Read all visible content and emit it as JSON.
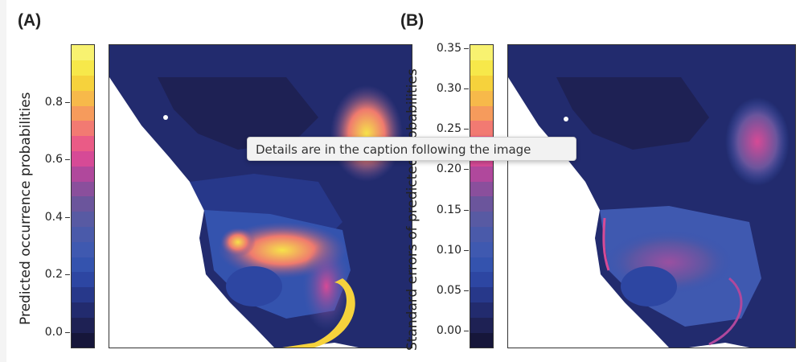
{
  "tooltip": "Details are in the caption following the image",
  "chart_data": [
    {
      "panel": "(A)",
      "type": "heatmap",
      "ylabel": "Predicted occurrence probabilities",
      "ticks": [
        "0.0",
        "0.2",
        "0.4",
        "0.6",
        "0.8"
      ],
      "tick_values": [
        0.0,
        0.2,
        0.4,
        0.6,
        0.8
      ],
      "range": [
        -0.05,
        1.0
      ],
      "colors": [
        "#16163a",
        "#1e2154",
        "#222b6e",
        "#27388a",
        "#2d46a2",
        "#3453ae",
        "#3f59b0",
        "#4a5aaa",
        "#585aa3",
        "#6b559c",
        "#8a4f9c",
        "#b0489c",
        "#d64a96",
        "#ea5b86",
        "#f27a72",
        "#f69b5c",
        "#f7b94a",
        "#f6d23c",
        "#f7e84a",
        "#f8f270"
      ]
    },
    {
      "panel": "(B)",
      "type": "heatmap",
      "ylabel": "Standard errors of predicted probabilities",
      "ticks": [
        "0.00",
        "0.05",
        "0.10",
        "0.15",
        "0.20",
        "0.25",
        "0.30",
        "0.35"
      ],
      "tick_values": [
        0.0,
        0.05,
        0.1,
        0.15,
        0.2,
        0.25,
        0.3,
        0.35
      ],
      "range": [
        -0.02,
        0.355
      ],
      "colors": [
        "#16163a",
        "#1e2154",
        "#222b6e",
        "#27388a",
        "#2d46a2",
        "#3453ae",
        "#3f59b0",
        "#4a5aaa",
        "#585aa3",
        "#6b559c",
        "#8a4f9c",
        "#b0489c",
        "#d64a96",
        "#ea5b86",
        "#f27a72",
        "#f69b5c",
        "#f7b94a",
        "#f6d23c",
        "#f7e84a",
        "#f8f270"
      ]
    }
  ]
}
